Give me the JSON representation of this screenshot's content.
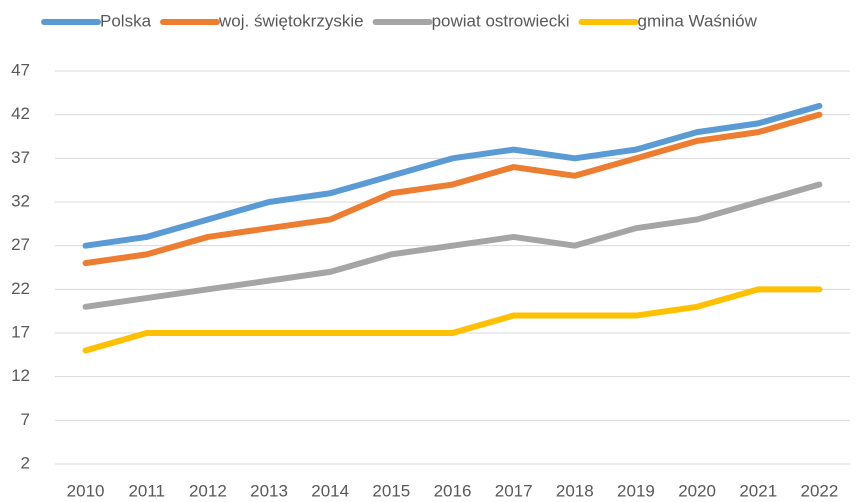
{
  "chart_data": {
    "type": "line",
    "categories": [
      "2010",
      "2011",
      "2012",
      "2013",
      "2014",
      "2015",
      "2016",
      "2017",
      "2018",
      "2019",
      "2020",
      "2021",
      "2022"
    ],
    "series": [
      {
        "name": "Polska",
        "color": "#5b9bd5",
        "values": [
          27,
          28,
          30,
          32,
          33,
          35,
          37,
          38,
          37,
          38,
          40,
          41,
          43
        ]
      },
      {
        "name": "woj. świętokrzyskie",
        "color": "#ed7d31",
        "values": [
          25,
          26,
          28,
          29,
          30,
          33,
          34,
          36,
          35,
          37,
          39,
          40,
          42
        ]
      },
      {
        "name": "powiat ostrowiecki",
        "color": "#a5a5a5",
        "values": [
          20,
          21,
          22,
          23,
          24,
          26,
          27,
          28,
          27,
          29,
          30,
          32,
          34
        ]
      },
      {
        "name": "gmina Waśniów",
        "color": "#ffc000",
        "values": [
          15,
          17,
          17,
          17,
          17,
          17,
          17,
          19,
          19,
          19,
          20,
          22,
          22
        ]
      }
    ],
    "ylim": [
      2,
      47
    ],
    "yticks": [
      2,
      7,
      12,
      17,
      22,
      27,
      32,
      37,
      42,
      47
    ],
    "grid": true,
    "legend": "top"
  }
}
